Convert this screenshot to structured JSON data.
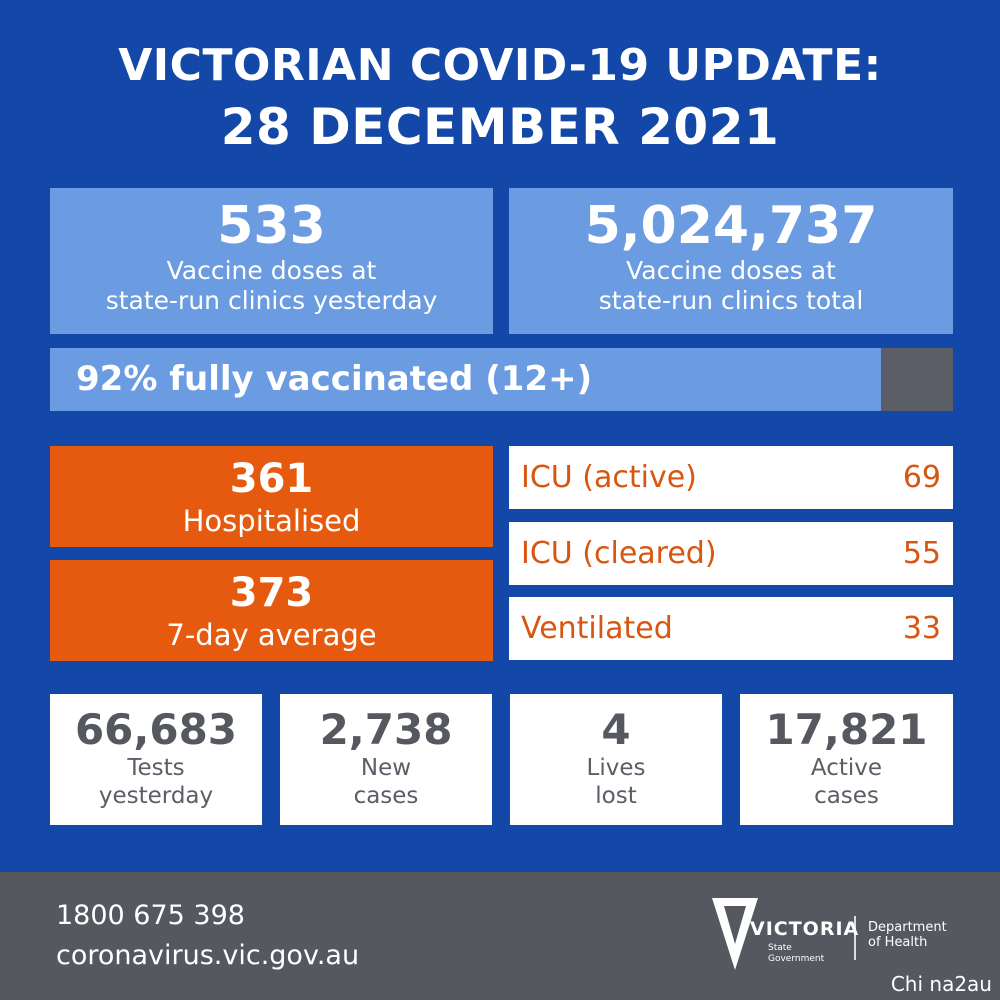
{
  "title": {
    "line1": "VICTORIAN COVID-19 UPDATE:",
    "line2": "28 DECEMBER 2021"
  },
  "vaccine": {
    "yesterday": {
      "value": "533",
      "label_line1": "Vaccine doses at",
      "label_line2": "state-run clinics yesterday"
    },
    "total": {
      "value": "5,024,737",
      "label_line1": "Vaccine doses at",
      "label_line2": "state-run clinics total"
    },
    "fully_vaccinated": {
      "text": "92% fully vaccinated (12+)",
      "fraction": 0.92
    }
  },
  "hospital": {
    "hospitalised": {
      "value": "361",
      "label": "Hospitalised"
    },
    "average": {
      "value": "373",
      "label": "7-day average"
    }
  },
  "icu": [
    {
      "label": "ICU (active)",
      "value": "69"
    },
    {
      "label": "ICU (cleared)",
      "value": "55"
    },
    {
      "label": "Ventilated",
      "value": "33"
    }
  ],
  "stats": [
    {
      "value": "66,683",
      "line1": "Tests",
      "line2": "yesterday"
    },
    {
      "value": "2,738",
      "line1": "New",
      "line2": "cases"
    },
    {
      "value": "4",
      "line1": "Lives",
      "line2": "lost"
    },
    {
      "value": "17,821",
      "line1": "Active",
      "line2": "cases"
    }
  ],
  "footer": {
    "phone": "1800 675 398",
    "website": "coronavirus.vic.gov.au",
    "logo_word": "VICTORIA",
    "logo_sub1": "State",
    "logo_sub2": "Government",
    "dept_line1": "Department",
    "dept_line2": "of Health"
  },
  "watermark": "Chi na2au",
  "colors": {
    "background": "#1347a8",
    "light_blue": "#6b9be0",
    "orange": "#e55a0e",
    "grey": "#55585f"
  }
}
